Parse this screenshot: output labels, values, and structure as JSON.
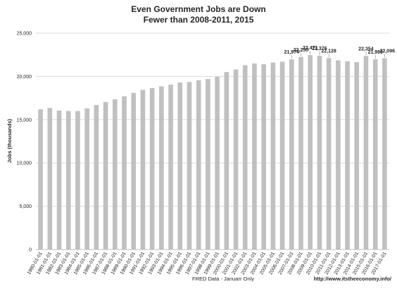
{
  "chart_data": {
    "type": "bar",
    "title": "Even Government Jobs are Down",
    "subtitle": "Fewer than 2008-2011, 2015",
    "xlabel": "FRED Data - Januarr Only",
    "ylabel": "Jobs (thousands)",
    "ylim": [
      0,
      25000
    ],
    "yticks": [
      0,
      5000,
      10000,
      15000,
      20000,
      25000
    ],
    "grid": true,
    "bar_color": "#c0c0c0",
    "categories": [
      "1980-01-01",
      "1981-01-01",
      "1982-01-01",
      "1983-01-01",
      "1984-01-01",
      "1985-01-01",
      "1986-01-01",
      "1987-01-01",
      "1988-01-01",
      "1989-01-01",
      "1990-01-01",
      "1991-01-01",
      "1992-01-01",
      "1993-01-01",
      "1994-01-01",
      "1995-01-01",
      "1996-01-01",
      "1997-01-01",
      "1998-01-01",
      "1999-01-01",
      "2000-01-01",
      "2001-01-01",
      "2002-01-01",
      "2003-01-01",
      "2004-01-01",
      "2005-01-01",
      "2006-01-01",
      "2007-01-01",
      "2008-01-01",
      "2009-01-01",
      "2010-01-01",
      "2011-01-01",
      "2012-01-01",
      "2013-01-01",
      "2014-01-01",
      "2015-01-01",
      "2016-01-01",
      "2017-01-01"
    ],
    "values": [
      16200,
      16350,
      16050,
      16000,
      16000,
      16300,
      16700,
      17050,
      17350,
      17700,
      18100,
      18450,
      18650,
      18850,
      19050,
      19300,
      19350,
      19550,
      19700,
      19950,
      20500,
      20800,
      21300,
      21500,
      21400,
      21600,
      21700,
      21974,
      22250,
      22471,
      22376,
      22128,
      21850,
      21750,
      21650,
      22354,
      21980,
      22096
    ],
    "data_labels": [
      {
        "index": 27,
        "text": "21,974"
      },
      {
        "index": 28,
        "text": "22,250"
      },
      {
        "index": 29,
        "text": "22,471"
      },
      {
        "index": 30,
        "text": "22,376"
      },
      {
        "index": 31,
        "text": "22,128"
      },
      {
        "index": 35,
        "text": "22,354"
      },
      {
        "index": 36,
        "text": "21,980"
      },
      {
        "index": 37,
        "text": "22,096"
      }
    ]
  },
  "credit": "http://www.itstheeconomy.info/"
}
